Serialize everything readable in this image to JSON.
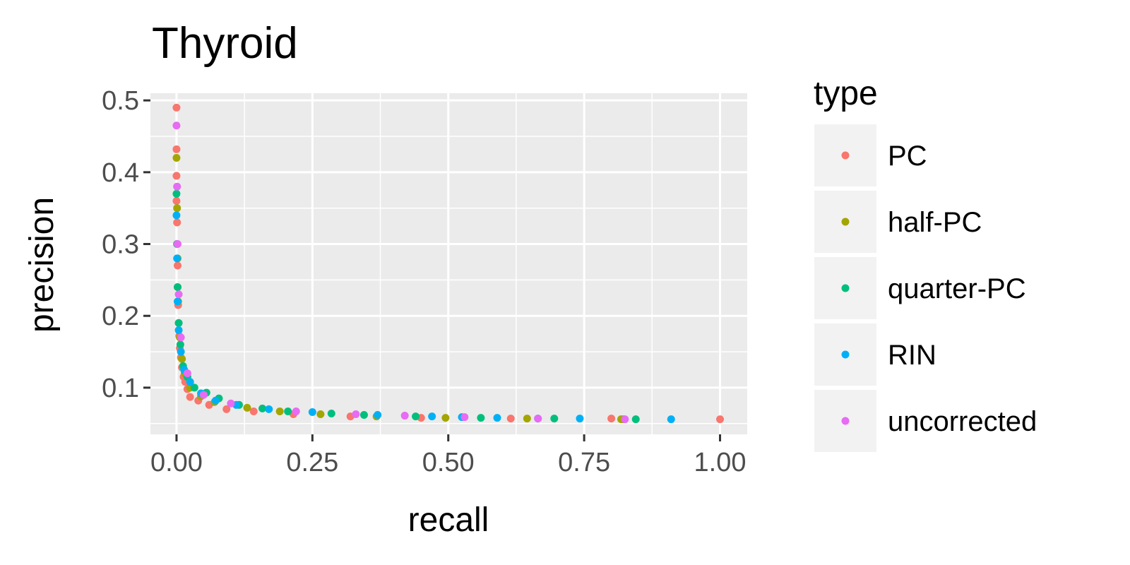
{
  "chart_data": {
    "type": "scatter",
    "title": "Thyroid",
    "xlabel": "recall",
    "ylabel": "precision",
    "xlim": [
      -0.048,
      1.05
    ],
    "ylim": [
      0.035,
      0.51
    ],
    "x_ticks": [
      0,
      0.25,
      0.5,
      0.75,
      1
    ],
    "x_tick_labels": [
      "0.00",
      "0.25",
      "0.50",
      "0.75",
      "1.00"
    ],
    "y_ticks": [
      0.1,
      0.2,
      0.3,
      0.4,
      0.5
    ],
    "y_tick_labels": [
      "0.1",
      "0.2",
      "0.3",
      "0.4",
      "0.5"
    ],
    "grid": true,
    "legend": {
      "title": "type",
      "position": "right"
    },
    "series": [
      {
        "name": "PC",
        "color": "#F8766D",
        "x": [
          0,
          0,
          0,
          0,
          0.001,
          0.001,
          0.002,
          0.002,
          0.003,
          0.004,
          0.005,
          0.006,
          0.008,
          0.01,
          0.013,
          0.016,
          0.02,
          0.025,
          0.04,
          0.06,
          0.092,
          0.142,
          0.215,
          0.32,
          0.45,
          0.615,
          0.8,
          1.0
        ],
        "y": [
          0.49,
          0.432,
          0.395,
          0.36,
          0.33,
          0.3,
          0.27,
          0.24,
          0.215,
          0.19,
          0.172,
          0.155,
          0.142,
          0.128,
          0.115,
          0.108,
          0.098,
          0.087,
          0.082,
          0.076,
          0.07,
          0.067,
          0.063,
          0.06,
          0.058,
          0.057,
          0.057,
          0.056
        ]
      },
      {
        "name": "half-PC",
        "color": "#A3A500",
        "x": [
          0,
          0.001,
          0.002,
          0.003,
          0.006,
          0.01,
          0.015,
          0.025,
          0.045,
          0.07,
          0.13,
          0.19,
          0.265,
          0.368,
          0.495,
          0.645,
          0.818,
          0.822
        ],
        "y": [
          0.42,
          0.35,
          0.28,
          0.22,
          0.17,
          0.14,
          0.12,
          0.1,
          0.088,
          0.08,
          0.072,
          0.067,
          0.063,
          0.06,
          0.058,
          0.057,
          0.056,
          0.056
        ]
      },
      {
        "name": "quarter-PC",
        "color": "#00BF7D",
        "x": [
          0,
          0.001,
          0.002,
          0.004,
          0.007,
          0.012,
          0.02,
          0.033,
          0.055,
          0.078,
          0.115,
          0.158,
          0.205,
          0.285,
          0.345,
          0.44,
          0.56,
          0.695,
          0.845
        ],
        "y": [
          0.37,
          0.3,
          0.24,
          0.19,
          0.16,
          0.13,
          0.115,
          0.1,
          0.093,
          0.085,
          0.076,
          0.071,
          0.067,
          0.064,
          0.062,
          0.06,
          0.058,
          0.057,
          0.056
        ]
      },
      {
        "name": "RIN",
        "color": "#00B0F6",
        "x": [
          0,
          0.001,
          0.002,
          0.004,
          0.008,
          0.014,
          0.025,
          0.045,
          0.072,
          0.11,
          0.17,
          0.25,
          0.37,
          0.47,
          0.525,
          0.59,
          0.665,
          0.742,
          0.91
        ],
        "y": [
          0.34,
          0.28,
          0.22,
          0.18,
          0.15,
          0.125,
          0.108,
          0.092,
          0.082,
          0.076,
          0.07,
          0.066,
          0.062,
          0.06,
          0.059,
          0.058,
          0.057,
          0.057,
          0.056
        ]
      },
      {
        "name": "uncorrected",
        "color": "#E76BF3",
        "x": [
          0,
          0.001,
          0.002,
          0.004,
          0.008,
          0.02,
          0.05,
          0.1,
          0.22,
          0.33,
          0.42,
          0.53,
          0.665,
          0.825
        ],
        "y": [
          0.465,
          0.38,
          0.3,
          0.23,
          0.17,
          0.12,
          0.09,
          0.078,
          0.067,
          0.063,
          0.061,
          0.059,
          0.057,
          0.056
        ]
      }
    ]
  }
}
